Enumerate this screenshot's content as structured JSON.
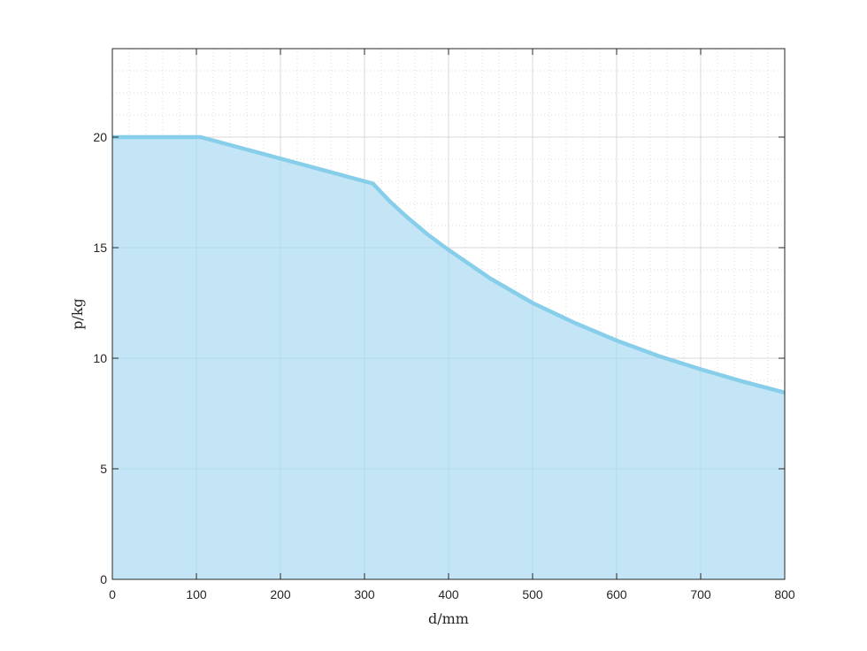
{
  "chart_data": {
    "type": "area",
    "title": "",
    "xlabel": "d/mm",
    "ylabel": "p/kg",
    "xlim": [
      0,
      800
    ],
    "ylim": [
      0,
      24
    ],
    "xticks": [
      0,
      100,
      200,
      300,
      400,
      500,
      600,
      700,
      800
    ],
    "yticks": [
      0,
      5,
      10,
      15,
      20
    ],
    "grid": "major and minor",
    "series": [
      {
        "x": [
          0,
          105,
          310,
          330,
          350,
          375,
          400,
          450,
          500,
          550,
          600,
          650,
          700,
          750,
          800
        ],
        "y": [
          20,
          20,
          17.9,
          17.1,
          16.4,
          15.6,
          14.9,
          13.6,
          12.5,
          11.6,
          10.8,
          10.1,
          9.5,
          8.95,
          8.45
        ]
      }
    ],
    "colors": {
      "line": "#87ceeb",
      "fill": "#c3e5f5",
      "axis": "#262626",
      "grid": "#d9d9d9"
    }
  }
}
